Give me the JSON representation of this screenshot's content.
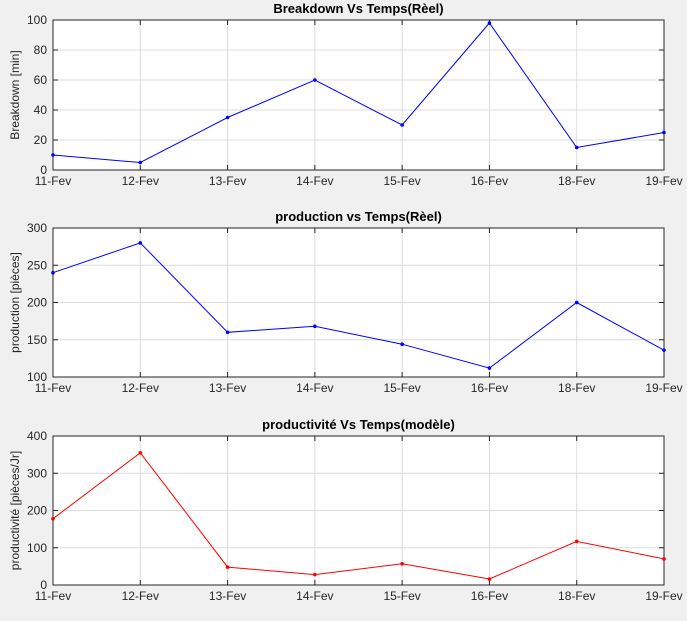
{
  "chart_data": [
    {
      "type": "line",
      "title": "Breakdown Vs Temps(Rèel)",
      "xlabel": "",
      "ylabel": "Breakdown [min]",
      "categories": [
        "11-Fev",
        "12-Fev",
        "13-Fev",
        "14-Fev",
        "15-Fev",
        "16-Fev",
        "18-Fev",
        "19-Fev"
      ],
      "series": [
        {
          "values": [
            10,
            5,
            35,
            60,
            30,
            98,
            15,
            25
          ],
          "color": "#0000ff"
        }
      ],
      "ylim": [
        0,
        100
      ],
      "yticks": [
        0,
        20,
        40,
        60,
        80,
        100
      ],
      "grid": true
    },
    {
      "type": "line",
      "title": "production  vs Temps(Rèel)",
      "xlabel": "",
      "ylabel": "production [pièces]",
      "categories": [
        "11-Fev",
        "12-Fev",
        "13-Fev",
        "14-Fev",
        "15-Fev",
        "16-Fev",
        "18-Fev",
        "19-Fev"
      ],
      "series": [
        {
          "values": [
            240,
            280,
            160,
            168,
            144,
            112,
            200,
            136
          ],
          "color": "#0000ff"
        }
      ],
      "ylim": [
        100,
        300
      ],
      "yticks": [
        100,
        150,
        200,
        250,
        300
      ],
      "grid": true
    },
    {
      "type": "line",
      "title": "productivité Vs Temps(modèle)",
      "xlabel": "",
      "ylabel": "productivité [pièces/Jr]",
      "categories": [
        "11-Fev",
        "12-Fev",
        "13-Fev",
        "14-Fev",
        "15-Fev",
        "16-Fev",
        "18-Fev",
        "19-Fev"
      ],
      "series": [
        {
          "values": [
            178,
            355,
            48,
            28,
            57,
            16,
            117,
            70
          ],
          "color": "#ff0000"
        }
      ],
      "ylim": [
        0,
        400
      ],
      "yticks": [
        0,
        100,
        200,
        300,
        400
      ],
      "grid": true
    }
  ]
}
